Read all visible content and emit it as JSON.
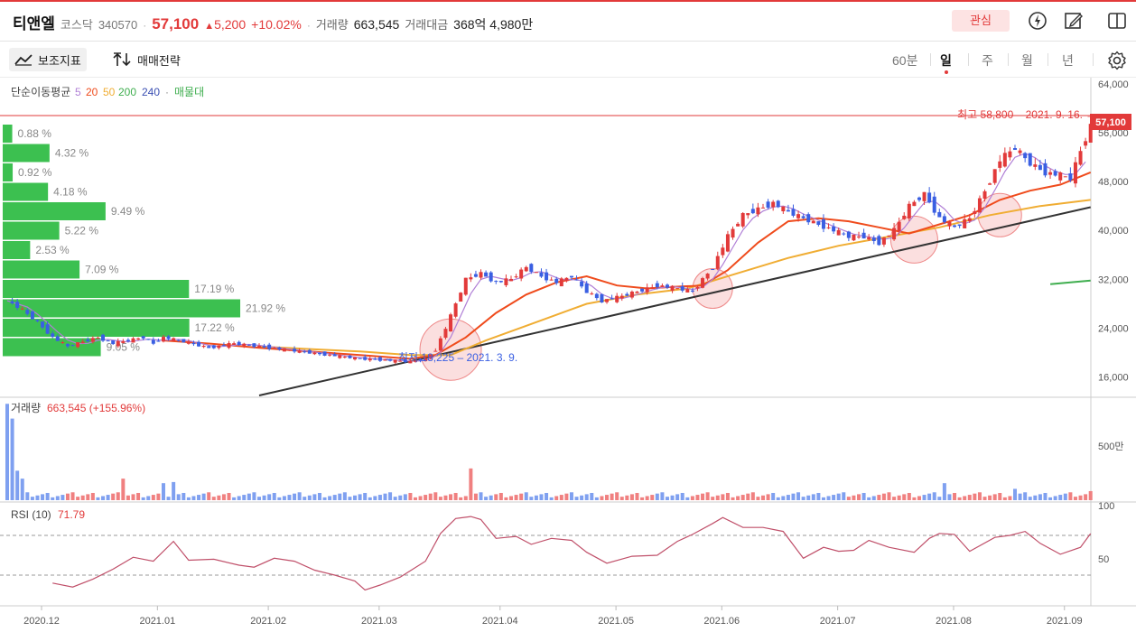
{
  "header": {
    "name": "티앤엘",
    "market": "코스닥",
    "code": "340570",
    "price": "57,100",
    "change": "5,200",
    "change_rate": "+10.02%",
    "volume_label": "거래량",
    "volume": "663,545",
    "amount_label": "거래대금",
    "amount": "368억 4,980만",
    "interest_button": "관심",
    "icons": [
      "lightning-icon",
      "edit-icon",
      "layout-icon"
    ]
  },
  "toolbar": {
    "indicator_label": "보조지표",
    "strategy_label": "매매전략",
    "periods": [
      "60분",
      "일",
      "주",
      "월",
      "년"
    ],
    "selected_period": "일",
    "settings_icon": "gear-icon"
  },
  "colors": {
    "up": "#e23a3a",
    "down": "#3a5fe2",
    "ma5": "#b07fd6",
    "ma20": "#ef4b1c",
    "ma50": "#f0ad33",
    "ma200": "#3fae4f",
    "ma240": "#3a4fb2",
    "profile": "#3cc050"
  },
  "legend": {
    "title": "단순이동평균",
    "periods": [
      "5",
      "20",
      "50",
      "200",
      "240"
    ],
    "profile_label": "매물대"
  },
  "annotations": {
    "high": "최고 58,800 – 2021. 9. 16.",
    "low": "최저 18,225 – 2021. 3. 9.",
    "price_tag": "57,100"
  },
  "volume_panel": {
    "label": "거래량",
    "value": "663,545 (+155.96%)",
    "axis_label": "500만"
  },
  "rsi_panel": {
    "label": "RSI (10)",
    "value": "71.79",
    "axis_labels": [
      "100",
      "50"
    ]
  },
  "chart_data": {
    "type": "candlestick",
    "price_axis": [
      "64,000",
      "56,000",
      "48,000",
      "40,000",
      "32,000",
      "24,000",
      "16,000"
    ],
    "ylim": [
      13000,
      65000
    ],
    "x_labels": [
      "2020.12",
      "2021.01",
      "2021.02",
      "2021.03",
      "2021.04",
      "2021.05",
      "2021.06",
      "2021.07",
      "2021.08",
      "2021.09"
    ],
    "volume_profile": [
      "0.88 %",
      "4.32 %",
      "0.92 %",
      "4.18 %",
      "9.49 %",
      "5.22 %",
      "2.53 %",
      "7.09 %",
      "17.19 %",
      "21.92 %",
      "17.22 %",
      "9.05 %"
    ],
    "volume_profile_values": [
      0.88,
      4.32,
      0.92,
      4.18,
      9.49,
      5.22,
      2.53,
      7.09,
      17.19,
      21.92,
      17.22,
      9.05
    ],
    "close_path": [
      [
        0,
        28500
      ],
      [
        3,
        27000
      ],
      [
        6,
        25000
      ],
      [
        9,
        22500
      ],
      [
        12,
        21000
      ],
      [
        15,
        21800
      ],
      [
        18,
        22500
      ],
      [
        21,
        21500
      ],
      [
        24,
        22000
      ],
      [
        27,
        22500
      ],
      [
        29,
        21500
      ],
      [
        31,
        22500
      ],
      [
        35,
        21800
      ],
      [
        40,
        20800
      ],
      [
        45,
        21500
      ],
      [
        50,
        21000
      ],
      [
        55,
        20500
      ],
      [
        60,
        20000
      ],
      [
        65,
        19500
      ],
      [
        70,
        19000
      ],
      [
        75,
        18800
      ],
      [
        80,
        18500
      ],
      [
        83,
        19000
      ],
      [
        85,
        20500
      ],
      [
        87,
        24000
      ],
      [
        89,
        28000
      ],
      [
        91,
        32000
      ],
      [
        94,
        33000
      ],
      [
        97,
        31500
      ],
      [
        100,
        32000
      ],
      [
        103,
        34000
      ],
      [
        106,
        32500
      ],
      [
        109,
        31500
      ],
      [
        112,
        32500
      ],
      [
        115,
        30000
      ],
      [
        118,
        28500
      ],
      [
        121,
        29000
      ],
      [
        125,
        30000
      ],
      [
        129,
        31000
      ],
      [
        133,
        30500
      ],
      [
        136,
        30000
      ],
      [
        140,
        34000
      ],
      [
        143,
        39000
      ],
      [
        146,
        42500
      ],
      [
        149,
        43500
      ],
      [
        152,
        44500
      ],
      [
        155,
        43000
      ],
      [
        158,
        42000
      ],
      [
        161,
        41000
      ],
      [
        164,
        40000
      ],
      [
        167,
        39000
      ],
      [
        170,
        39000
      ],
      [
        173,
        38000
      ],
      [
        176,
        40000
      ],
      [
        179,
        44000
      ],
      [
        182,
        46000
      ],
      [
        185,
        42000
      ],
      [
        188,
        40500
      ],
      [
        191,
        42000
      ],
      [
        194,
        46500
      ],
      [
        197,
        51500
      ],
      [
        200,
        53500
      ],
      [
        203,
        51000
      ],
      [
        206,
        49500
      ],
      [
        209,
        49000
      ],
      [
        211,
        48500
      ],
      [
        213,
        53000
      ],
      [
        215,
        57100
      ]
    ],
    "ma20_path": [
      [
        31,
        22000
      ],
      [
        40,
        21500
      ],
      [
        50,
        20800
      ],
      [
        60,
        20200
      ],
      [
        70,
        19600
      ],
      [
        80,
        19000
      ],
      [
        85,
        19600
      ],
      [
        91,
        22500
      ],
      [
        97,
        26500
      ],
      [
        103,
        29500
      ],
      [
        109,
        31500
      ],
      [
        115,
        32500
      ],
      [
        121,
        31000
      ],
      [
        127,
        30500
      ],
      [
        133,
        30800
      ],
      [
        138,
        31000
      ],
      [
        143,
        33500
      ],
      [
        149,
        38000
      ],
      [
        155,
        41500
      ],
      [
        161,
        42000
      ],
      [
        167,
        41500
      ],
      [
        173,
        40500
      ],
      [
        179,
        39500
      ],
      [
        185,
        41000
      ],
      [
        191,
        42500
      ],
      [
        197,
        45000
      ],
      [
        203,
        46500
      ],
      [
        209,
        47500
      ],
      [
        215,
        49500
      ]
    ],
    "ma50_path": [
      [
        50,
        21000
      ],
      [
        60,
        20600
      ],
      [
        70,
        20200
      ],
      [
        80,
        19600
      ],
      [
        88,
        19600
      ],
      [
        95,
        22000
      ],
      [
        105,
        25000
      ],
      [
        115,
        28000
      ],
      [
        125,
        29500
      ],
      [
        135,
        30500
      ],
      [
        145,
        33000
      ],
      [
        155,
        35500
      ],
      [
        165,
        37500
      ],
      [
        175,
        39000
      ],
      [
        185,
        40500
      ],
      [
        195,
        42500
      ],
      [
        205,
        44000
      ],
      [
        215,
        45000
      ]
    ],
    "ma200_path": [
      [
        207,
        31200
      ],
      [
        215,
        31800
      ]
    ],
    "trendline": [
      [
        50,
        13000
      ],
      [
        215,
        43800
      ]
    ],
    "volume_spikes": [
      [
        0,
        8.5
      ],
      [
        1,
        7.2
      ],
      [
        2,
        2.6
      ],
      [
        3,
        1.9
      ],
      [
        23,
        1.9
      ],
      [
        31,
        1.5
      ],
      [
        33,
        1.6
      ],
      [
        92,
        2.8
      ],
      [
        186,
        1.5
      ],
      [
        200,
        1.0
      ],
      [
        215,
        0.8
      ]
    ],
    "rsi_path": [
      [
        9,
        22
      ],
      [
        13,
        18
      ],
      [
        17,
        26
      ],
      [
        21,
        36
      ],
      [
        25,
        48
      ],
      [
        29,
        44
      ],
      [
        33,
        64
      ],
      [
        36,
        45
      ],
      [
        41,
        46
      ],
      [
        46,
        40
      ],
      [
        49,
        38
      ],
      [
        53,
        47
      ],
      [
        57,
        44
      ],
      [
        61,
        35
      ],
      [
        65,
        30
      ],
      [
        69,
        24
      ],
      [
        71,
        15
      ],
      [
        74,
        20
      ],
      [
        78,
        28
      ],
      [
        83,
        44
      ],
      [
        86,
        72
      ],
      [
        89,
        87
      ],
      [
        92,
        89
      ],
      [
        94,
        86
      ],
      [
        97,
        67
      ],
      [
        101,
        69
      ],
      [
        104,
        61
      ],
      [
        108,
        67
      ],
      [
        112,
        65
      ],
      [
        115,
        53
      ],
      [
        119,
        42
      ],
      [
        124,
        49
      ],
      [
        129,
        50
      ],
      [
        133,
        64
      ],
      [
        136,
        71
      ],
      [
        140,
        82
      ],
      [
        142,
        88
      ],
      [
        146,
        78
      ],
      [
        150,
        78
      ],
      [
        154,
        74
      ],
      [
        158,
        47
      ],
      [
        162,
        58
      ],
      [
        165,
        54
      ],
      [
        168,
        55
      ],
      [
        171,
        65
      ],
      [
        175,
        58
      ],
      [
        180,
        53
      ],
      [
        183,
        67
      ],
      [
        185,
        72
      ],
      [
        188,
        71
      ],
      [
        191,
        54
      ],
      [
        196,
        68
      ],
      [
        199,
        70
      ],
      [
        202,
        74
      ],
      [
        205,
        62
      ],
      [
        209,
        51
      ],
      [
        213,
        58
      ],
      [
        215,
        71.79
      ]
    ]
  }
}
